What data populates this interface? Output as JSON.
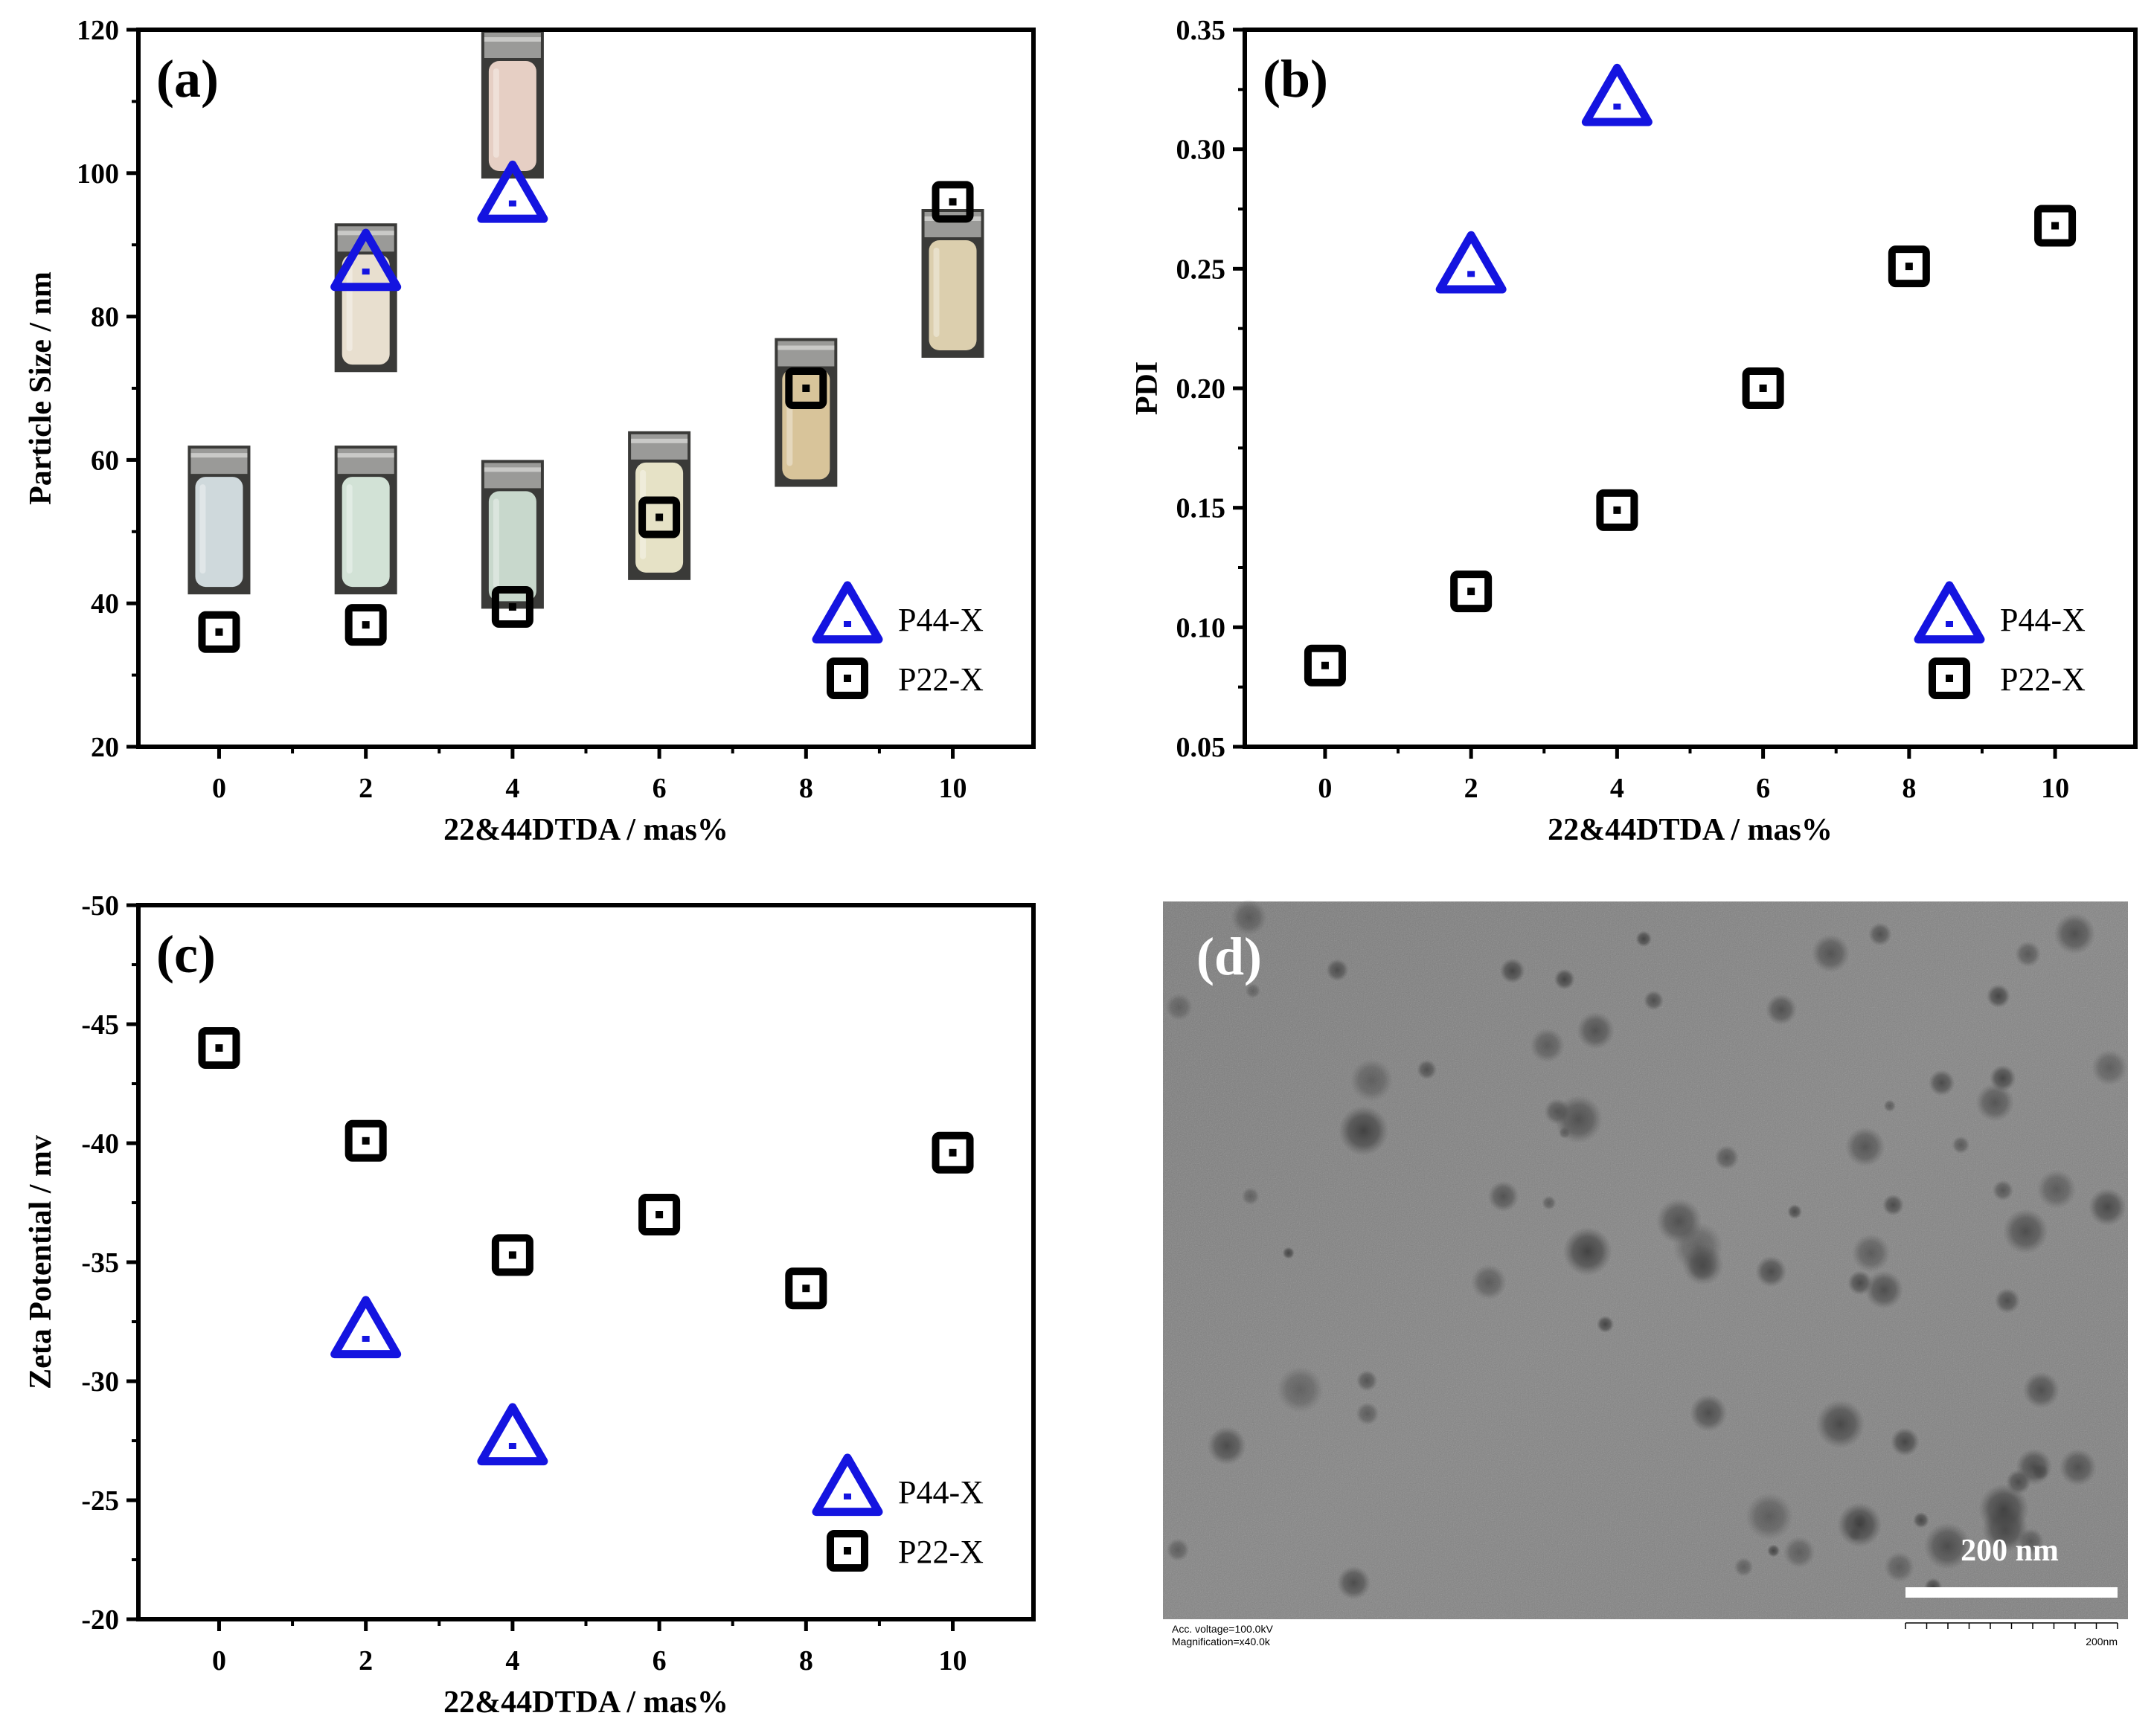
{
  "chart_data": [
    {
      "type": "scatter",
      "panel_label": "(a)",
      "xlabel": "22&44DTDA / mas%",
      "ylabel": "Particle Size / nm",
      "xlim": [
        -1.1,
        11.1
      ],
      "ylim": [
        20,
        120
      ],
      "xticks": [
        0,
        2,
        4,
        6,
        8,
        10
      ],
      "yticks": [
        20,
        40,
        60,
        80,
        100,
        120
      ],
      "legend_position": "bottom-right",
      "series": [
        {
          "name": "P44-X",
          "marker": "triangle",
          "color": "#1414e0",
          "x": [
            2,
            4
          ],
          "y": [
            87,
            96.5
          ]
        },
        {
          "name": "P22-X",
          "marker": "square",
          "color": "#000000",
          "x": [
            0,
            2,
            4,
            6,
            8,
            10
          ],
          "y": [
            36,
            37,
            39.5,
            52,
            70,
            96
          ]
        }
      ],
      "vial_photos": [
        {
          "x": 0,
          "liquid": "#cfd9dc"
        },
        {
          "x": 2,
          "liquid": "#d2e2d6"
        },
        {
          "x": 4,
          "liquid": "#c8d8cc"
        },
        {
          "x": 6,
          "liquid": "#e6e2c6"
        },
        {
          "x": 8,
          "liquid": "#d8c49a"
        },
        {
          "x": 10,
          "liquid": "#dccfae"
        },
        {
          "x": 2,
          "liquid": "#e8dfcf"
        },
        {
          "x": 4,
          "liquid": "#e6cfc4"
        }
      ]
    },
    {
      "type": "scatter",
      "panel_label": "(b)",
      "xlabel": "22&44DTDA / mas%",
      "ylabel": "PDI",
      "xlim": [
        -1.1,
        11.1
      ],
      "ylim": [
        0.05,
        0.35
      ],
      "xticks": [
        0,
        2,
        4,
        6,
        8,
        10
      ],
      "yticks": [
        "0.05",
        "0.10",
        "0.15",
        "0.20",
        "0.25",
        "0.30",
        "0.35"
      ],
      "legend_position": "bottom-right",
      "series": [
        {
          "name": "P44-X",
          "marker": "triangle",
          "color": "#1414e0",
          "x": [
            2,
            4
          ],
          "y": [
            0.25,
            0.32
          ]
        },
        {
          "name": "P22-X",
          "marker": "square",
          "color": "#000000",
          "x": [
            0,
            2,
            4,
            6,
            8,
            10
          ],
          "y": [
            0.084,
            0.115,
            0.149,
            0.2,
            0.251,
            0.268
          ]
        }
      ]
    },
    {
      "type": "scatter",
      "panel_label": "(c)",
      "xlabel": "22&44DTDA / mas%",
      "ylabel": "Zeta Potential / mv",
      "xlim": [
        -1.1,
        11.1
      ],
      "ylim": [
        -20,
        -50
      ],
      "xticks": [
        0,
        2,
        4,
        6,
        8,
        10
      ],
      "yticks": [
        -20,
        -25,
        -30,
        -35,
        -40,
        -45,
        -50
      ],
      "legend_position": "bottom-right",
      "series": [
        {
          "name": "P44-X",
          "marker": "triangle",
          "color": "#1414e0",
          "x": [
            2,
            4
          ],
          "y": [
            -32,
            -27.5
          ]
        },
        {
          "name": "P22-X",
          "marker": "square",
          "color": "#000000",
          "x": [
            0,
            2,
            4,
            6,
            8,
            10
          ],
          "y": [
            -44,
            -40.1,
            -35.3,
            -37,
            -33.9,
            -39.6
          ]
        }
      ]
    }
  ],
  "tem": {
    "panel_label": "(d)",
    "scale_bar_label": "200 nm",
    "footer_left_line1": "Acc. voltage=100.0kV",
    "footer_left_line2": "Magnification=x40.0k",
    "footer_right": "200nm"
  }
}
